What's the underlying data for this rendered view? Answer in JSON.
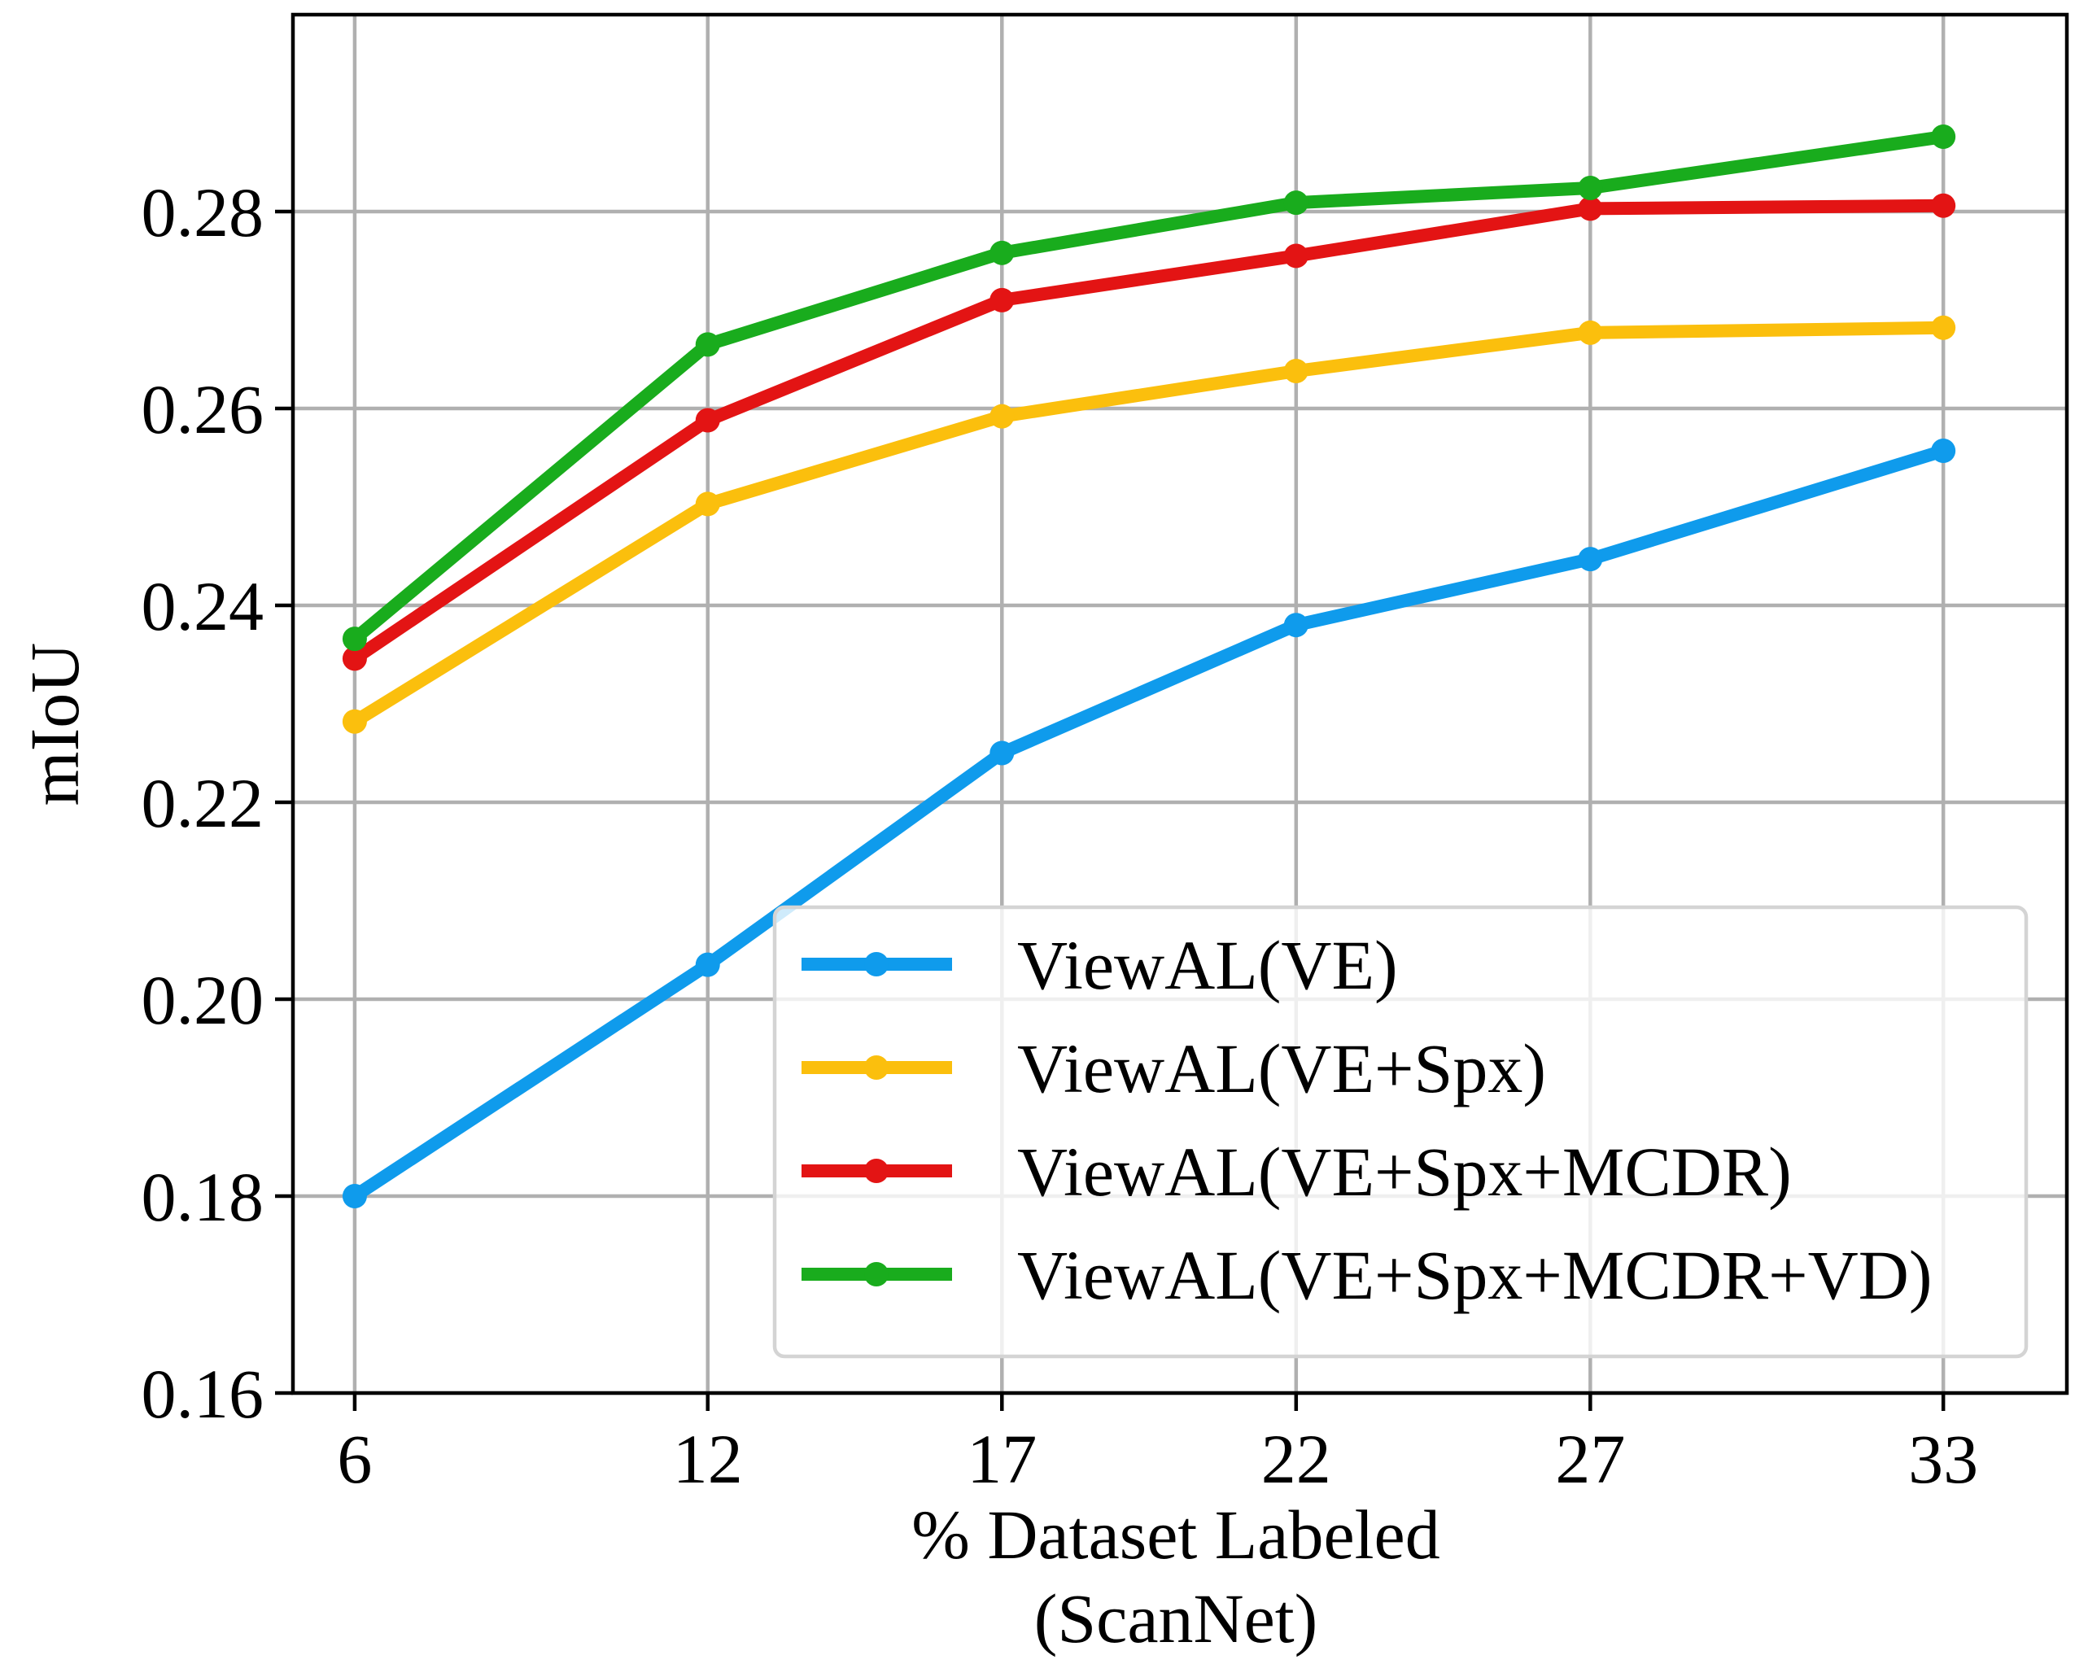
{
  "chart_data": {
    "type": "line",
    "title": "",
    "xlabel": [
      "% Dataset Labeled",
      "(ScanNet)"
    ],
    "ylabel": "mIoU",
    "x": [
      6,
      12,
      17,
      22,
      27,
      33
    ],
    "x_tick_labels": [
      "6",
      "12",
      "17",
      "22",
      "27",
      "33"
    ],
    "y_ticks": [
      0.16,
      0.18,
      0.2,
      0.22,
      0.24,
      0.26,
      0.28
    ],
    "y_tick_labels": [
      "0.16",
      "0.18",
      "0.20",
      "0.22",
      "0.24",
      "0.26",
      "0.28"
    ],
    "xlim": [
      4.95,
      35.1
    ],
    "ylim": [
      0.16,
      0.3
    ],
    "grid": true,
    "legend_position": "lower-right",
    "series": [
      {
        "name": "ViewAL(VE)",
        "color": "#0f9bec",
        "values": [
          0.18,
          0.2035,
          0.225,
          0.238,
          0.2447,
          0.2557
        ]
      },
      {
        "name": "ViewAL(VE+Spx)",
        "color": "#fbbf0d",
        "values": [
          0.2282,
          0.2503,
          0.2592,
          0.2638,
          0.2677,
          0.2682
        ]
      },
      {
        "name": "ViewAL(VE+Spx+MCDR)",
        "color": "#e31414",
        "values": [
          0.2346,
          0.2588,
          0.271,
          0.2755,
          0.2803,
          0.2806
        ]
      },
      {
        "name": "ViewAL(VE+Spx+MCDR+VD)",
        "color": "#19ac1d",
        "values": [
          0.2366,
          0.2665,
          0.2758,
          0.2809,
          0.2824,
          0.2876
        ]
      }
    ]
  }
}
